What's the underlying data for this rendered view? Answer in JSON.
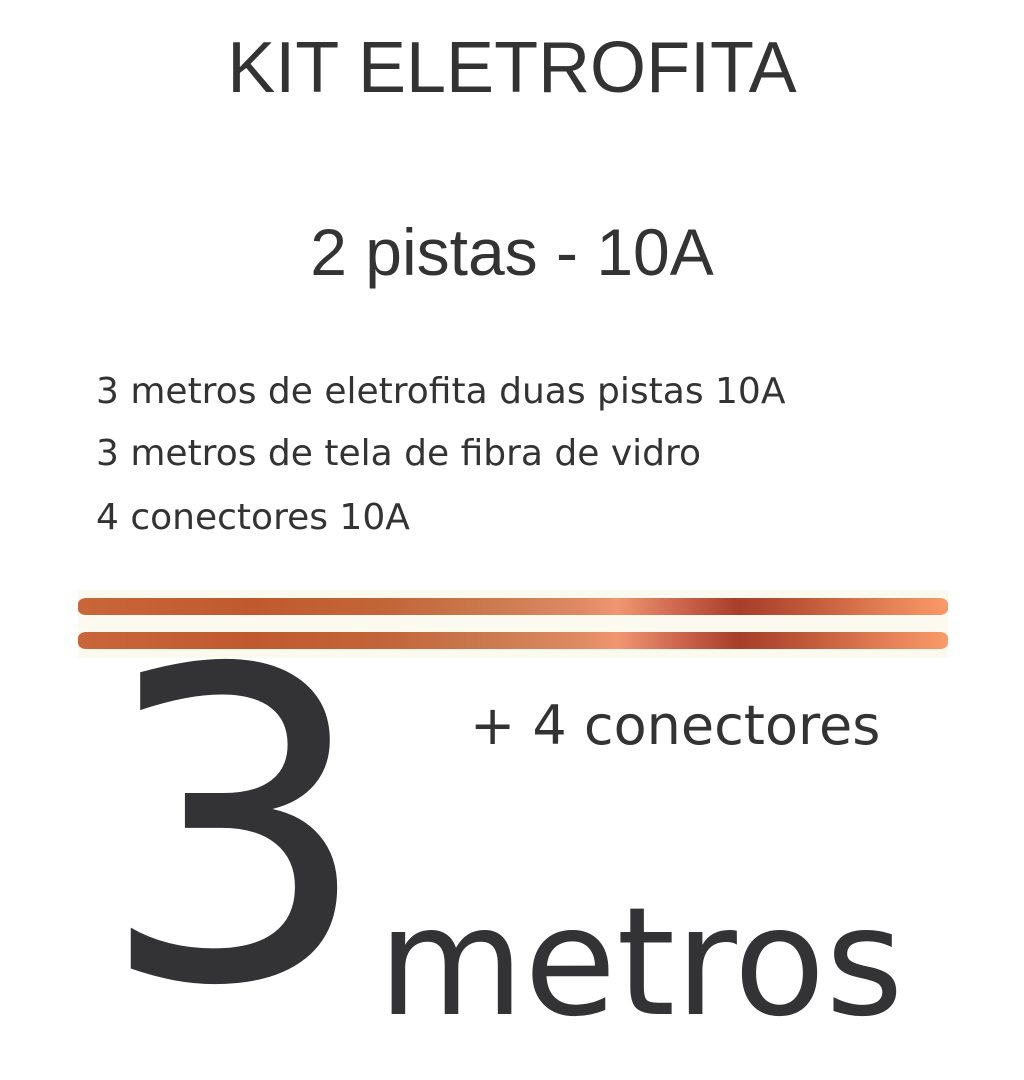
{
  "title": "KIT ELETROFITA",
  "subtitle": "2 pistas - 10A",
  "features": [
    "3 metros de eletrofita duas pistas 10A",
    "3 metros de tela de fibra de vidro",
    "4 conectores 10A"
  ],
  "highlight": {
    "number": "3",
    "unit": "metros",
    "extra": "+ 4 conectores"
  },
  "colors": {
    "text": "#333335",
    "copper_dark": "#a63e2a",
    "copper_light": "#f99a68",
    "tape_background": "#fcfaee"
  }
}
